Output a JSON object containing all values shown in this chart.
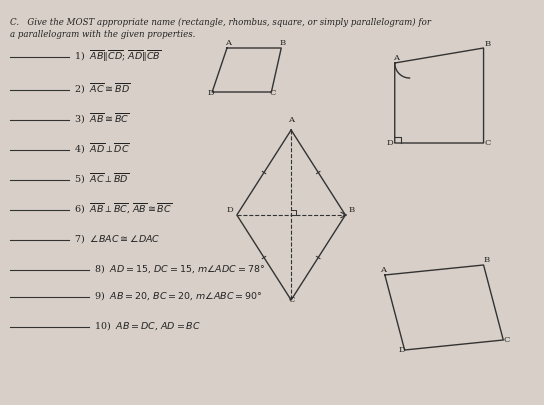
{
  "bg_color": "#d8d0c8",
  "title_line1": "C.   Give the MOST appropriate name (rectangle, rhombus, square, or simply parallelogram) for",
  "title_line2": "a parallelogram with the given properties.",
  "items": [
    "1)  $\\overline{AB} \\| \\overline{CD}$; $\\overline{AD} \\| \\overline{CB}$",
    "2)  $\\overline{AC} \\cong \\overline{BD}$",
    "3)  $\\overline{AB} \\cong \\overline{BC}$",
    "4)  $\\overline{AD} \\perp \\overline{DC}$",
    "5)  $\\overline{AC} \\perp \\overline{BD}$",
    "6)  $\\overline{AB} \\perp \\overline{BC}$, $\\overline{AB} \\cong \\overline{BC}$",
    "7)  $\\angle BAC \\cong \\angle DAC$",
    "8)  $AD = 15$, $DC = 15$, $m\\angle ADC = 78°$",
    "9)  $AB = 20$, $BC = 20$, $m\\angle ABC = 90°$",
    "10)  $AB = DC$, $AD = BC$"
  ],
  "line_color": "#333333",
  "text_color": "#222222"
}
